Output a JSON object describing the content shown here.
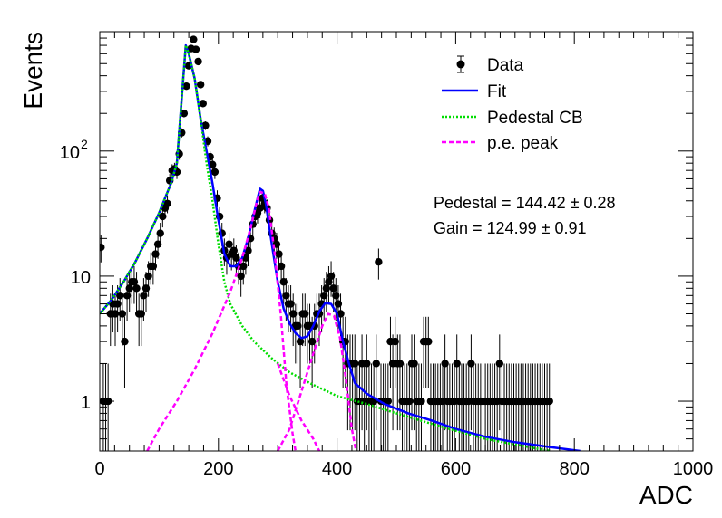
{
  "chart_data": {
    "type": "scatter",
    "title": "",
    "xlabel": "ADC",
    "ylabel": "Events",
    "xlim": [
      0,
      1000
    ],
    "ylim": [
      0.4,
      900
    ],
    "yscale": "log",
    "grid": false,
    "legend_position": "top-right",
    "x_ticks": [
      {
        "value": 0,
        "label": "0"
      },
      {
        "value": 200,
        "label": "200"
      },
      {
        "value": 400,
        "label": "400"
      },
      {
        "value": 600,
        "label": "600"
      },
      {
        "value": 800,
        "label": "800"
      },
      {
        "value": 1000,
        "label": "1000"
      }
    ],
    "y_ticks": [
      {
        "value": 1,
        "label": "1"
      },
      {
        "value": 10,
        "label": "10"
      },
      {
        "value": 100,
        "label": "10",
        "sup": "2"
      }
    ],
    "legend": [
      {
        "label": "Data",
        "style": "marker"
      },
      {
        "label": "Fit",
        "style": "solid",
        "color": "#0000ff"
      },
      {
        "label": "Pedestal CB",
        "style": "dotted",
        "color": "#00dd00"
      },
      {
        "label": "p.e. peak",
        "style": "dashed",
        "color": "#ff00ff"
      }
    ],
    "annotations": [
      "Pedestal = 144.42 ± 0.28",
      "Gain = 124.99 ± 0.91"
    ],
    "series": [
      {
        "name": "Data",
        "kind": "points",
        "color": "#000000",
        "points": [
          [
            2,
            17
          ],
          [
            6,
            1
          ],
          [
            10,
            1
          ],
          [
            14,
            1
          ],
          [
            18,
            5
          ],
          [
            22,
            6
          ],
          [
            26,
            5
          ],
          [
            30,
            6
          ],
          [
            34,
            7
          ],
          [
            38,
            5
          ],
          [
            42,
            3
          ],
          [
            46,
            7
          ],
          [
            50,
            8
          ],
          [
            54,
            9
          ],
          [
            58,
            9
          ],
          [
            62,
            8
          ],
          [
            66,
            5
          ],
          [
            70,
            5
          ],
          [
            74,
            7
          ],
          [
            78,
            8
          ],
          [
            82,
            10
          ],
          [
            86,
            12
          ],
          [
            90,
            12
          ],
          [
            94,
            15
          ],
          [
            98,
            18
          ],
          [
            102,
            22
          ],
          [
            106,
            30
          ],
          [
            110,
            35
          ],
          [
            114,
            38
          ],
          [
            118,
            58
          ],
          [
            122,
            70
          ],
          [
            126,
            72
          ],
          [
            130,
            68
          ],
          [
            134,
            95
          ],
          [
            138,
            140
          ],
          [
            142,
            200
          ],
          [
            146,
            330
          ],
          [
            150,
            480
          ],
          [
            154,
            660
          ],
          [
            158,
            780
          ],
          [
            162,
            650
          ],
          [
            166,
            520
          ],
          [
            170,
            340
          ],
          [
            174,
            240
          ],
          [
            178,
            160
          ],
          [
            182,
            120
          ],
          [
            186,
            90
          ],
          [
            190,
            78
          ],
          [
            194,
            68
          ],
          [
            198,
            42
          ],
          [
            202,
            30
          ],
          [
            206,
            22
          ],
          [
            210,
            16
          ],
          [
            214,
            14
          ],
          [
            218,
            18
          ],
          [
            222,
            15
          ],
          [
            226,
            16
          ],
          [
            230,
            14
          ],
          [
            234,
            12
          ],
          [
            238,
            10
          ],
          [
            242,
            12
          ],
          [
            246,
            14
          ],
          [
            250,
            16
          ],
          [
            254,
            20
          ],
          [
            258,
            26
          ],
          [
            262,
            30
          ],
          [
            266,
            32
          ],
          [
            270,
            35
          ],
          [
            274,
            42
          ],
          [
            278,
            38
          ],
          [
            282,
            35
          ],
          [
            286,
            28
          ],
          [
            290,
            22
          ],
          [
            294,
            20
          ],
          [
            298,
            18
          ],
          [
            302,
            15
          ],
          [
            306,
            12
          ],
          [
            310,
            9
          ],
          [
            314,
            7
          ],
          [
            318,
            6
          ],
          [
            322,
            6
          ],
          [
            326,
            5
          ],
          [
            330,
            4
          ],
          [
            334,
            4
          ],
          [
            338,
            3
          ],
          [
            342,
            5
          ],
          [
            346,
            5
          ],
          [
            350,
            4
          ],
          [
            354,
            4
          ],
          [
            358,
            3
          ],
          [
            362,
            4
          ],
          [
            366,
            5
          ],
          [
            370,
            5
          ],
          [
            374,
            6
          ],
          [
            378,
            7
          ],
          [
            382,
            8
          ],
          [
            386,
            9
          ],
          [
            390,
            10
          ],
          [
            394,
            8
          ],
          [
            398,
            7
          ],
          [
            402,
            6
          ],
          [
            406,
            5
          ],
          [
            410,
            3
          ],
          [
            414,
            3
          ],
          [
            418,
            2
          ],
          [
            422,
            2
          ],
          [
            426,
            2
          ],
          [
            430,
            2
          ],
          [
            434,
            1
          ],
          [
            438,
            1
          ],
          [
            442,
            2
          ],
          [
            446,
            1
          ],
          [
            450,
            2
          ],
          [
            454,
            1
          ],
          [
            458,
            1
          ],
          [
            462,
            1
          ],
          [
            466,
            2
          ],
          [
            470,
            13
          ],
          [
            474,
            1
          ],
          [
            478,
            1
          ],
          [
            482,
            1
          ],
          [
            486,
            1
          ],
          [
            490,
            3
          ],
          [
            494,
            2
          ],
          [
            498,
            3
          ],
          [
            502,
            2
          ],
          [
            506,
            2
          ],
          [
            510,
            1
          ],
          [
            514,
            1
          ],
          [
            518,
            1
          ],
          [
            522,
            1
          ],
          [
            526,
            2
          ],
          [
            530,
            2
          ],
          [
            534,
            1
          ],
          [
            538,
            1
          ],
          [
            542,
            1
          ],
          [
            546,
            3
          ],
          [
            550,
            3
          ],
          [
            554,
            3
          ],
          [
            558,
            1
          ],
          [
            562,
            1
          ],
          [
            566,
            1
          ],
          [
            570,
            1
          ],
          [
            574,
            1
          ],
          [
            578,
            1
          ],
          [
            582,
            2
          ],
          [
            586,
            1
          ],
          [
            590,
            1
          ],
          [
            594,
            1
          ],
          [
            598,
            1
          ],
          [
            602,
            2
          ],
          [
            606,
            1
          ],
          [
            610,
            1
          ],
          [
            614,
            1
          ],
          [
            618,
            1
          ],
          [
            622,
            1
          ],
          [
            626,
            2
          ],
          [
            630,
            1
          ],
          [
            634,
            1
          ],
          [
            638,
            1
          ],
          [
            642,
            1
          ],
          [
            646,
            1
          ],
          [
            650,
            1
          ],
          [
            654,
            1
          ],
          [
            658,
            1
          ],
          [
            662,
            1
          ],
          [
            666,
            1
          ],
          [
            670,
            1
          ],
          [
            674,
            2
          ],
          [
            678,
            1
          ],
          [
            682,
            1
          ],
          [
            686,
            1
          ],
          [
            690,
            1
          ],
          [
            694,
            1
          ],
          [
            698,
            1
          ],
          [
            702,
            1
          ],
          [
            706,
            1
          ],
          [
            710,
            1
          ],
          [
            714,
            1
          ],
          [
            718,
            1
          ],
          [
            722,
            1
          ],
          [
            726,
            1
          ],
          [
            730,
            1
          ],
          [
            734,
            1
          ],
          [
            738,
            1
          ],
          [
            742,
            1
          ],
          [
            746,
            1
          ],
          [
            750,
            1
          ],
          [
            754,
            1
          ],
          [
            758,
            1
          ]
        ]
      },
      {
        "name": "Fit",
        "kind": "curve",
        "color": "#0000ff",
        "points": [
          [
            0,
            5
          ],
          [
            20,
            6.5
          ],
          [
            40,
            9
          ],
          [
            60,
            13
          ],
          [
            80,
            20
          ],
          [
            100,
            32
          ],
          [
            110,
            42
          ],
          [
            120,
            55
          ],
          [
            130,
            80
          ],
          [
            140,
            350
          ],
          [
            145,
            700
          ],
          [
            150,
            600
          ],
          [
            160,
            380
          ],
          [
            170,
            180
          ],
          [
            180,
            100
          ],
          [
            190,
            55
          ],
          [
            200,
            28
          ],
          [
            210,
            15
          ],
          [
            220,
            12
          ],
          [
            230,
            12
          ],
          [
            240,
            14
          ],
          [
            250,
            20
          ],
          [
            260,
            32
          ],
          [
            270,
            50
          ],
          [
            275,
            48
          ],
          [
            280,
            38
          ],
          [
            290,
            18
          ],
          [
            300,
            9
          ],
          [
            310,
            5.5
          ],
          [
            320,
            4.2
          ],
          [
            330,
            3.5
          ],
          [
            340,
            3.2
          ],
          [
            350,
            3.3
          ],
          [
            360,
            4
          ],
          [
            370,
            5.2
          ],
          [
            380,
            6.1
          ],
          [
            390,
            6
          ],
          [
            400,
            5
          ],
          [
            410,
            3
          ],
          [
            420,
            2
          ],
          [
            430,
            1.4
          ],
          [
            450,
            1.15
          ],
          [
            480,
            0.95
          ],
          [
            520,
            0.8
          ],
          [
            560,
            0.7
          ],
          [
            600,
            0.6
          ],
          [
            650,
            0.52
          ],
          [
            700,
            0.47
          ],
          [
            760,
            0.43
          ],
          [
            810,
            0.4
          ]
        ]
      },
      {
        "name": "Pedestal CB",
        "kind": "curve",
        "color": "#00dd00",
        "points": [
          [
            0,
            5
          ],
          [
            20,
            6.5
          ],
          [
            40,
            9
          ],
          [
            60,
            13
          ],
          [
            80,
            20
          ],
          [
            100,
            32
          ],
          [
            110,
            42
          ],
          [
            120,
            55
          ],
          [
            130,
            80
          ],
          [
            140,
            350
          ],
          [
            145,
            700
          ],
          [
            150,
            600
          ],
          [
            160,
            380
          ],
          [
            170,
            180
          ],
          [
            180,
            80
          ],
          [
            190,
            40
          ],
          [
            200,
            18
          ],
          [
            210,
            9
          ],
          [
            220,
            6
          ],
          [
            240,
            4
          ],
          [
            260,
            3
          ],
          [
            290,
            2.2
          ],
          [
            320,
            1.7
          ],
          [
            360,
            1.35
          ],
          [
            400,
            1.1
          ],
          [
            450,
            0.95
          ],
          [
            500,
            0.8
          ],
          [
            550,
            0.68
          ],
          [
            600,
            0.58
          ],
          [
            650,
            0.5
          ],
          [
            700,
            0.45
          ],
          [
            760,
            0.4
          ]
        ]
      },
      {
        "name": "p.e. peak",
        "kind": "curve",
        "color": "#ff00ff",
        "points": [
          [
            80,
            0.4
          ],
          [
            100,
            0.6
          ],
          [
            130,
            1
          ],
          [
            160,
            1.8
          ],
          [
            190,
            3.5
          ],
          [
            220,
            7.5
          ],
          [
            240,
            14
          ],
          [
            255,
            25
          ],
          [
            265,
            40
          ],
          [
            270,
            47
          ],
          [
            278,
            46
          ],
          [
            285,
            35
          ],
          [
            295,
            15
          ],
          [
            305,
            5
          ],
          [
            315,
            1.3
          ],
          [
            325,
            0.55
          ],
          [
            330,
            0.4
          ]
        ]
      },
      {
        "name": "p.e. peak",
        "kind": "curve",
        "color": "#ff00ff",
        "points": [
          [
            300,
            0.4
          ],
          [
            320,
            0.6
          ],
          [
            340,
            1.2
          ],
          [
            360,
            2.4
          ],
          [
            375,
            4
          ],
          [
            385,
            5
          ],
          [
            395,
            4.8
          ],
          [
            405,
            3.2
          ],
          [
            415,
            1.5
          ],
          [
            425,
            0.6
          ],
          [
            432,
            0.4
          ]
        ]
      },
      {
        "name": "p.e. peak",
        "kind": "curve",
        "color": "#ff00ff",
        "points": [
          [
            300,
            2
          ],
          [
            320,
            1.1
          ],
          [
            340,
            0.7
          ],
          [
            360,
            0.5
          ],
          [
            370,
            0.4
          ]
        ]
      }
    ]
  }
}
